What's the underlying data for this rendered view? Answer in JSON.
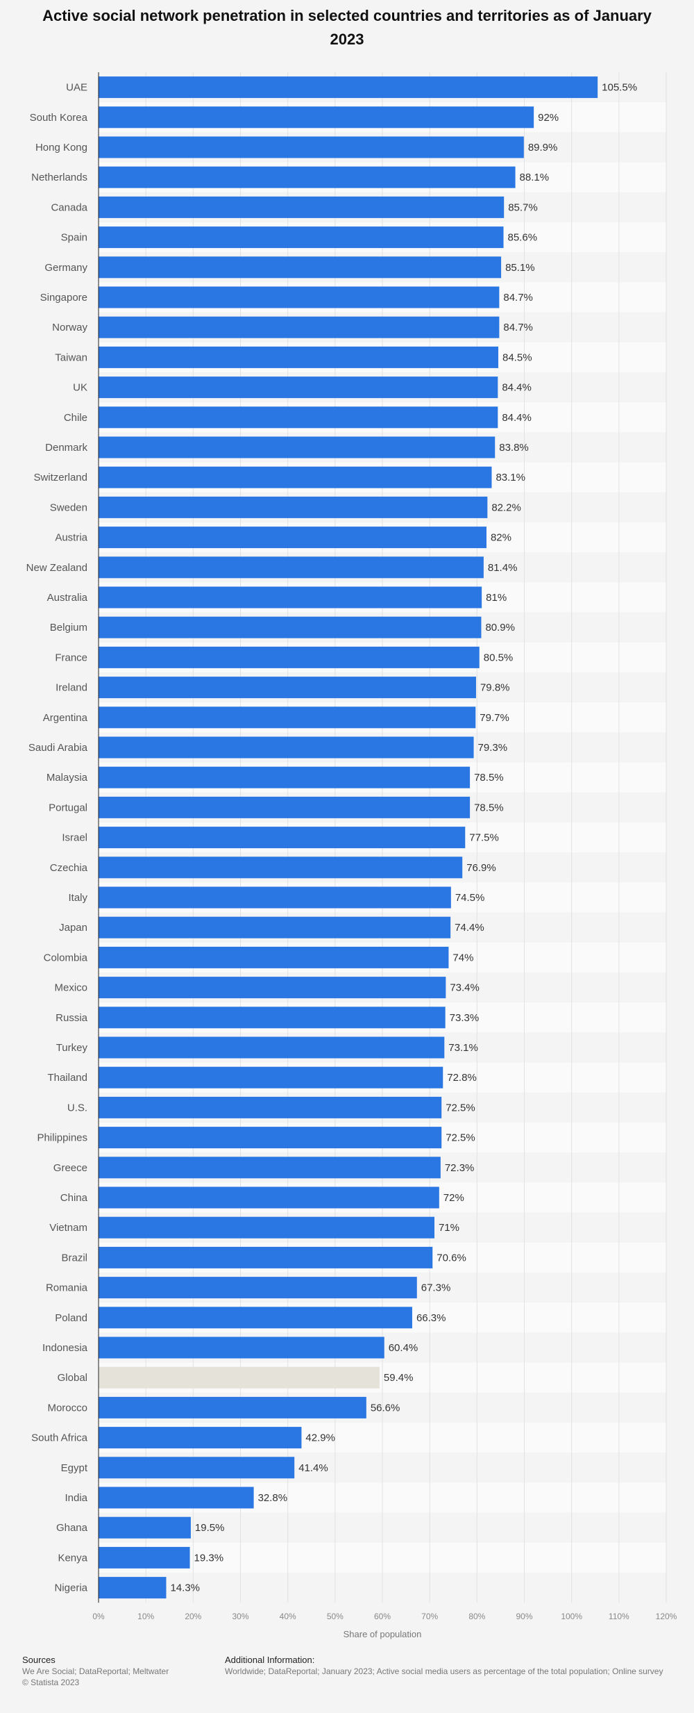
{
  "chart_data": {
    "type": "bar",
    "orientation": "horizontal",
    "title": "Active social network penetration in selected countries and territories as of January 2023",
    "xlabel": "Share of population",
    "ylabel": "",
    "xlim": [
      0,
      120
    ],
    "ticks": [
      "0%",
      "10%",
      "20%",
      "30%",
      "40%",
      "50%",
      "60%",
      "70%",
      "80%",
      "90%",
      "100%",
      "110%",
      "120%"
    ],
    "bar_color": "#2a77e4",
    "highlight_color": "#e5e2d9",
    "highlight_category": "Global",
    "categories": [
      "UAE",
      "South Korea",
      "Hong Kong",
      "Netherlands",
      "Canada",
      "Spain",
      "Germany",
      "Singapore",
      "Norway",
      "Taiwan",
      "UK",
      "Chile",
      "Denmark",
      "Switzerland",
      "Sweden",
      "Austria",
      "New Zealand",
      "Australia",
      "Belgium",
      "France",
      "Ireland",
      "Argentina",
      "Saudi Arabia",
      "Malaysia",
      "Portugal",
      "Israel",
      "Czechia",
      "Italy",
      "Japan",
      "Colombia",
      "Mexico",
      "Russia",
      "Turkey",
      "Thailand",
      "U.S.",
      "Philippines",
      "Greece",
      "China",
      "Vietnam",
      "Brazil",
      "Romania",
      "Poland",
      "Indonesia",
      "Global",
      "Morocco",
      "South Africa",
      "Egypt",
      "India",
      "Ghana",
      "Kenya",
      "Nigeria"
    ],
    "values": [
      105.5,
      92,
      89.9,
      88.1,
      85.7,
      85.6,
      85.1,
      84.7,
      84.7,
      84.5,
      84.4,
      84.4,
      83.8,
      83.1,
      82.2,
      82,
      81.4,
      81,
      80.9,
      80.5,
      79.8,
      79.7,
      79.3,
      78.5,
      78.5,
      77.5,
      76.9,
      74.5,
      74.4,
      74,
      73.4,
      73.3,
      73.1,
      72.8,
      72.5,
      72.5,
      72.3,
      72,
      71,
      70.6,
      67.3,
      66.3,
      60.4,
      59.4,
      56.6,
      42.9,
      41.4,
      32.8,
      19.5,
      19.3,
      14.3
    ],
    "value_labels": [
      "105.5%",
      "92%",
      "89.9%",
      "88.1%",
      "85.7%",
      "85.6%",
      "85.1%",
      "84.7%",
      "84.7%",
      "84.5%",
      "84.4%",
      "84.4%",
      "83.8%",
      "83.1%",
      "82.2%",
      "82%",
      "81.4%",
      "81%",
      "80.9%",
      "80.5%",
      "79.8%",
      "79.7%",
      "79.3%",
      "78.5%",
      "78.5%",
      "77.5%",
      "76.9%",
      "74.5%",
      "74.4%",
      "74%",
      "73.4%",
      "73.3%",
      "73.1%",
      "72.8%",
      "72.5%",
      "72.5%",
      "72.3%",
      "72%",
      "71%",
      "70.6%",
      "67.3%",
      "66.3%",
      "60.4%",
      "59.4%",
      "56.6%",
      "42.9%",
      "41.4%",
      "32.8%",
      "19.5%",
      "19.3%",
      "14.3%"
    ]
  },
  "footer": {
    "sources_heading": "Sources",
    "sources_line1": "We Are Social; DataReportal; Meltwater",
    "sources_line2": "© Statista 2023",
    "info_heading": "Additional Information:",
    "info_text": "Worldwide; DataReportal; January 2023; Active social media users as percentage of the total population; Online survey"
  }
}
